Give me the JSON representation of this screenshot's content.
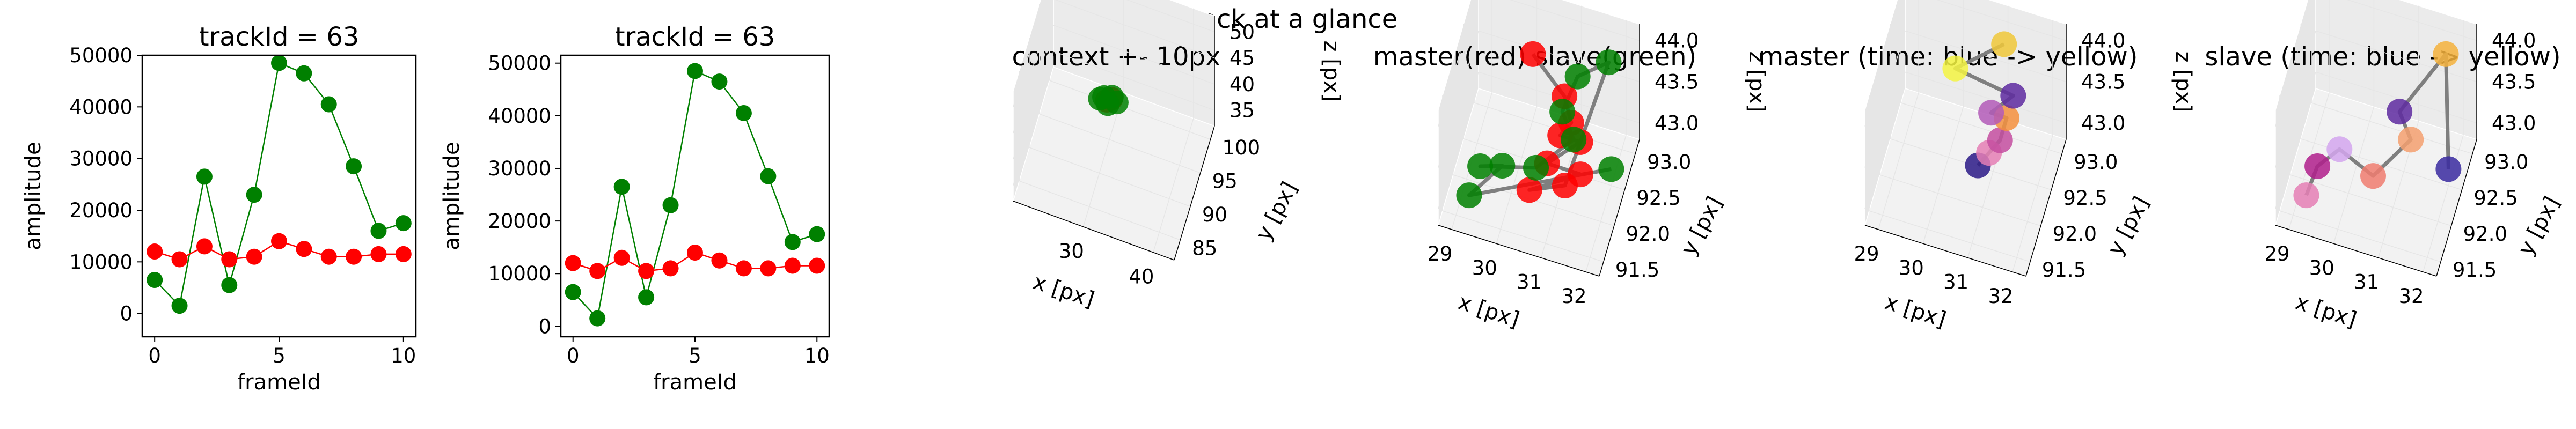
{
  "figure": {
    "suptitle": "Track at a glance"
  },
  "chart_data": [
    {
      "type": "line",
      "title": "trackId = 63",
      "xlabel": "frameId",
      "ylabel": "amplitude",
      "xlim": [
        -0.5,
        10.5
      ],
      "ylim": [
        -4500,
        50000
      ],
      "xticks": [
        0,
        5,
        10
      ],
      "yticks": [
        0,
        10000,
        20000,
        30000,
        40000,
        50000
      ],
      "x": [
        0,
        1,
        2,
        3,
        4,
        5,
        6,
        7,
        8,
        9,
        10
      ],
      "series": [
        {
          "color": "#008000",
          "values": [
            6500,
            1500,
            26500,
            5500,
            23000,
            48500,
            46500,
            40500,
            28500,
            16000,
            17500
          ]
        },
        {
          "color": "#ff0000",
          "values": [
            12000,
            10500,
            13000,
            10500,
            11000,
            14000,
            12500,
            11000,
            11000,
            11500,
            11500
          ]
        }
      ]
    },
    {
      "type": "line",
      "title": "trackId = 63",
      "xlabel": "frameId",
      "ylabel": "amplitude",
      "xlim": [
        -0.5,
        10.5
      ],
      "ylim": [
        -2000,
        51500
      ],
      "xticks": [
        0,
        5,
        10
      ],
      "yticks": [
        0,
        10000,
        20000,
        30000,
        40000,
        50000
      ],
      "x": [
        0,
        1,
        2,
        3,
        4,
        5,
        6,
        7,
        8,
        9,
        10
      ],
      "series": [
        {
          "color": "#008000",
          "values": [
            6500,
            1500,
            26500,
            5500,
            23000,
            48500,
            46500,
            40500,
            28500,
            16000,
            17500
          ]
        },
        {
          "color": "#ff0000",
          "values": [
            12000,
            10500,
            13000,
            10500,
            11000,
            14000,
            12500,
            11000,
            11000,
            11500,
            11500
          ]
        }
      ]
    },
    {
      "type": "scatter",
      "title": "context +- 10px",
      "xlabel": "x [px]",
      "ylabel": "y [px]",
      "zlabel": "z [px]",
      "xticks": [
        "30",
        "40"
      ],
      "yticks": [
        "85",
        "90",
        "95",
        "100"
      ],
      "zticks": [
        "35",
        "40",
        "45",
        "50"
      ],
      "points": [
        {
          "x": 30.5,
          "y": 92.0,
          "z": 43.5,
          "color": "#ff0000"
        },
        {
          "x": 31.0,
          "y": 92.5,
          "z": 43.5,
          "color": "#ff0000"
        },
        {
          "x": 29.5,
          "y": 92.0,
          "z": 43.4,
          "color": "#008000"
        },
        {
          "x": 30.0,
          "y": 92.3,
          "z": 43.6,
          "color": "#008000"
        },
        {
          "x": 31.0,
          "y": 92.8,
          "z": 43.5,
          "color": "#008000"
        },
        {
          "x": 31.8,
          "y": 92.4,
          "z": 43.3,
          "color": "#008000"
        },
        {
          "x": 30.7,
          "y": 91.8,
          "z": 43.2,
          "color": "#008000"
        }
      ]
    },
    {
      "type": "scatter",
      "title": "master(red) slave(green)",
      "xlabel": "x [px]",
      "ylabel": "y [px]",
      "zlabel": "z [px]",
      "xticks": [
        "29",
        "30",
        "31",
        "32"
      ],
      "yticks": [
        "91.5",
        "92.0",
        "92.5",
        "93.0"
      ],
      "zticks": [
        "43.0",
        "43.5",
        "44.0"
      ],
      "points": [
        {
          "x": 30.2,
          "y": 92.6,
          "z": 44.0,
          "color": "#ff0000"
        },
        {
          "x": 31.0,
          "y": 92.4,
          "z": 43.8,
          "color": "#ff0000"
        },
        {
          "x": 31.2,
          "y": 92.3,
          "z": 43.6,
          "color": "#ff0000"
        },
        {
          "x": 31.0,
          "y": 92.2,
          "z": 43.5,
          "color": "#ff0000"
        },
        {
          "x": 31.4,
          "y": 92.3,
          "z": 43.4,
          "color": "#ff0000"
        },
        {
          "x": 30.8,
          "y": 92.0,
          "z": 43.3,
          "color": "#ff0000"
        },
        {
          "x": 31.5,
          "y": 92.1,
          "z": 43.2,
          "color": "#ff0000"
        },
        {
          "x": 30.5,
          "y": 91.8,
          "z": 43.1,
          "color": "#ff0000"
        },
        {
          "x": 31.2,
          "y": 92.0,
          "z": 43.1,
          "color": "#ff0000"
        },
        {
          "x": 31.8,
          "y": 92.8,
          "z": 44.0,
          "color": "#008000"
        },
        {
          "x": 31.2,
          "y": 92.6,
          "z": 43.9,
          "color": "#008000"
        },
        {
          "x": 31.0,
          "y": 92.3,
          "z": 43.7,
          "color": "#008000"
        },
        {
          "x": 31.3,
          "y": 92.2,
          "z": 43.5,
          "color": "#008000"
        },
        {
          "x": 30.6,
          "y": 91.9,
          "z": 43.3,
          "color": "#008000"
        },
        {
          "x": 29.4,
          "y": 91.8,
          "z": 43.2,
          "color": "#008000"
        },
        {
          "x": 29.8,
          "y": 92.0,
          "z": 43.1,
          "color": "#008000"
        },
        {
          "x": 29.2,
          "y": 91.7,
          "z": 42.9,
          "color": "#008000"
        },
        {
          "x": 32.0,
          "y": 92.5,
          "z": 43.0,
          "color": "#008000"
        }
      ]
    },
    {
      "type": "scatter",
      "title": "master (time: blue -> yellow)",
      "xlabel": "x [px]",
      "ylabel": "y [px]",
      "zlabel": "z [px]",
      "xticks": [
        "29",
        "30",
        "31",
        "32"
      ],
      "yticks": [
        "91.5",
        "92.0",
        "92.5",
        "93.0"
      ],
      "zticks": [
        "43.0",
        "43.5",
        "44.0"
      ],
      "points": [
        {
          "x": 30.8,
          "y": 92.2,
          "z": 43.1,
          "color": "#2c1a87"
        },
        {
          "x": 31.0,
          "y": 92.3,
          "z": 43.2,
          "color": "#e57fb5"
        },
        {
          "x": 31.2,
          "y": 92.4,
          "z": 43.3,
          "color": "#c44ea0"
        },
        {
          "x": 31.3,
          "y": 92.5,
          "z": 43.5,
          "color": "#f4903e"
        },
        {
          "x": 31.0,
          "y": 92.4,
          "z": 43.6,
          "color": "#b35ab8"
        },
        {
          "x": 31.4,
          "y": 92.6,
          "z": 43.7,
          "color": "#5e2aa0"
        },
        {
          "x": 30.2,
          "y": 92.4,
          "z": 44.0,
          "color": "#f5f542"
        },
        {
          "x": 31.1,
          "y": 92.8,
          "z": 44.1,
          "color": "#f0c83a"
        }
      ]
    },
    {
      "type": "scatter",
      "title": "slave (time: blue -> yellow)",
      "xlabel": "x [px]",
      "ylabel": "y [px]",
      "zlabel": "z [px]",
      "xticks": [
        "29",
        "30",
        "31",
        "32"
      ],
      "yticks": [
        "91.5",
        "92.0",
        "92.5",
        "93.0"
      ],
      "zticks": [
        "43.0",
        "43.5",
        "44.0"
      ],
      "points": [
        {
          "x": 29.2,
          "y": 91.7,
          "z": 42.9,
          "color": "#e57fb5"
        },
        {
          "x": 29.4,
          "y": 91.8,
          "z": 43.2,
          "color": "#b01f8c"
        },
        {
          "x": 29.8,
          "y": 92.0,
          "z": 43.3,
          "color": "#d3a6ee"
        },
        {
          "x": 30.6,
          "y": 91.9,
          "z": 43.2,
          "color": "#f07c70"
        },
        {
          "x": 31.3,
          "y": 92.2,
          "z": 43.5,
          "color": "#f4a070"
        },
        {
          "x": 31.0,
          "y": 92.3,
          "z": 43.7,
          "color": "#5e2aa0"
        },
        {
          "x": 31.8,
          "y": 92.8,
          "z": 44.1,
          "color": "#f4b23c"
        },
        {
          "x": 32.0,
          "y": 92.5,
          "z": 43.0,
          "color": "#3a2aa0"
        }
      ]
    }
  ]
}
